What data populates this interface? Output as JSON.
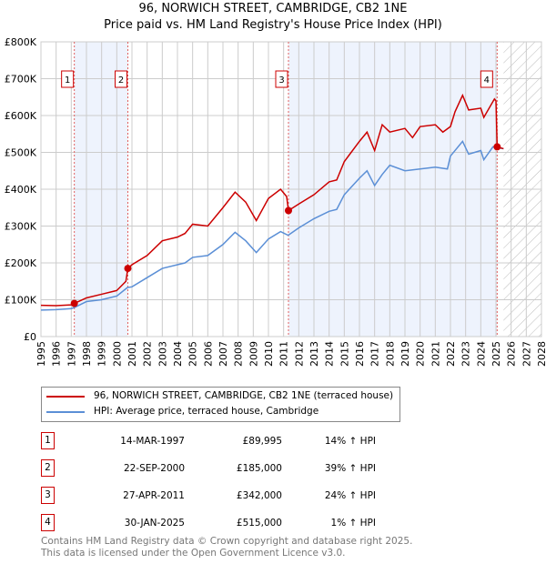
{
  "chart_data": {
    "type": "line",
    "title": "96, NORWICH STREET, CAMBRIDGE, CB2 1NE",
    "subtitle": "Price paid vs. HM Land Registry's House Price Index (HPI)",
    "xlim": [
      1995,
      2028
    ],
    "ylim": [
      0,
      800000
    ],
    "y_ticks": [
      {
        "v": 0,
        "label": "£0"
      },
      {
        "v": 100000,
        "label": "£100K"
      },
      {
        "v": 200000,
        "label": "£200K"
      },
      {
        "v": 300000,
        "label": "£300K"
      },
      {
        "v": 400000,
        "label": "£400K"
      },
      {
        "v": 500000,
        "label": "£500K"
      },
      {
        "v": 600000,
        "label": "£600K"
      },
      {
        "v": 700000,
        "label": "£700K"
      },
      {
        "v": 800000,
        "label": "£800K"
      }
    ],
    "x_ticks": [
      "1995",
      "1996",
      "1997",
      "1998",
      "1999",
      "2000",
      "2001",
      "2002",
      "2003",
      "2004",
      "2005",
      "2006",
      "2007",
      "2008",
      "2009",
      "2010",
      "2011",
      "2012",
      "2013",
      "2014",
      "2015",
      "2016",
      "2017",
      "2018",
      "2019",
      "2020",
      "2021",
      "2022",
      "2023",
      "2024",
      "2025",
      "2026",
      "2027",
      "2028"
    ],
    "forecast_start": 2025.5,
    "shaded_ranges": [
      [
        1997.2,
        2000.73
      ],
      [
        2011.32,
        2025.08
      ]
    ],
    "series": [
      {
        "name": "96, NORWICH STREET, CAMBRIDGE, CB2 1NE (terraced house)",
        "color": "#cc0000",
        "x": [
          1995,
          1996,
          1997,
          1997.2,
          1998,
          1999,
          2000,
          2000.6,
          2000.73,
          2001,
          2002,
          2003,
          2004,
          2004.5,
          2005,
          2006,
          2007,
          2007.8,
          2008.5,
          2009.2,
          2010,
          2010.8,
          2011.2,
          2011.32,
          2012,
          2013,
          2014,
          2014.5,
          2015,
          2016,
          2016.5,
          2017,
          2017.5,
          2018,
          2019,
          2019.5,
          2020,
          2021,
          2021.5,
          2022,
          2022.3,
          2022.8,
          2023.2,
          2024,
          2024.2,
          2024.9,
          2025.0,
          2025.08,
          2025.5
        ],
        "y": [
          85000,
          84000,
          86000,
          90000,
          105000,
          115000,
          125000,
          150000,
          185000,
          195000,
          220000,
          260000,
          270000,
          280000,
          305000,
          300000,
          350000,
          392000,
          365000,
          315000,
          375000,
          400000,
          380000,
          342000,
          360000,
          385000,
          420000,
          425000,
          475000,
          530000,
          555000,
          505000,
          575000,
          555000,
          565000,
          540000,
          570000,
          575000,
          555000,
          570000,
          610000,
          655000,
          615000,
          620000,
          595000,
          645000,
          640000,
          515000,
          510000
        ]
      },
      {
        "name": "HPI: Average price, terraced house, Cambridge",
        "color": "#5b8fd6",
        "x": [
          1995,
          1996,
          1997,
          1997.2,
          1998,
          1999,
          2000,
          2000.7,
          2001,
          2002,
          2003,
          2004,
          2004.5,
          2005,
          2006,
          2007,
          2007.8,
          2008.5,
          2009.2,
          2010,
          2010.8,
          2011.3,
          2012,
          2013,
          2014,
          2014.5,
          2015,
          2016,
          2016.5,
          2017,
          2017.5,
          2018,
          2019,
          2020,
          2021,
          2021.8,
          2022,
          2022.8,
          2023.2,
          2024,
          2024.2,
          2024.8,
          2025.5
        ],
        "y": [
          72000,
          73000,
          76000,
          79000,
          95000,
          100000,
          110000,
          133000,
          135000,
          160000,
          185000,
          195000,
          200000,
          215000,
          220000,
          250000,
          283000,
          260000,
          228000,
          265000,
          285000,
          275000,
          295000,
          320000,
          340000,
          345000,
          385000,
          430000,
          450000,
          410000,
          440000,
          465000,
          450000,
          455000,
          460000,
          455000,
          490000,
          530000,
          495000,
          505000,
          480000,
          515000,
          510000
        ]
      }
    ],
    "sales": [
      {
        "n": "1",
        "x": 1997.2,
        "price": 89995
      },
      {
        "n": "2",
        "x": 2000.73,
        "price": 185000
      },
      {
        "n": "3",
        "x": 2011.32,
        "price": 342000
      },
      {
        "n": "4",
        "x": 2025.08,
        "price": 515000
      }
    ]
  },
  "header": {
    "title": "96, NORWICH STREET, CAMBRIDGE, CB2 1NE",
    "subtitle": "Price paid vs. HM Land Registry's House Price Index (HPI)"
  },
  "legend": {
    "red": "96, NORWICH STREET, CAMBRIDGE, CB2 1NE (terraced house)",
    "blue": "HPI: Average price, terraced house, Cambridge"
  },
  "table": [
    {
      "n": "1",
      "date": "14-MAR-1997",
      "price": "£89,995",
      "hpi": "14% ↑ HPI"
    },
    {
      "n": "2",
      "date": "22-SEP-2000",
      "price": "£185,000",
      "hpi": "39% ↑ HPI"
    },
    {
      "n": "3",
      "date": "27-APR-2011",
      "price": "£342,000",
      "hpi": "24% ↑ HPI"
    },
    {
      "n": "4",
      "date": "30-JAN-2025",
      "price": "£515,000",
      "hpi": "1% ↑ HPI"
    }
  ],
  "footer": {
    "line1": "Contains HM Land Registry data © Crown copyright and database right 2025.",
    "line2": "This data is licensed under the Open Government Licence v3.0."
  }
}
